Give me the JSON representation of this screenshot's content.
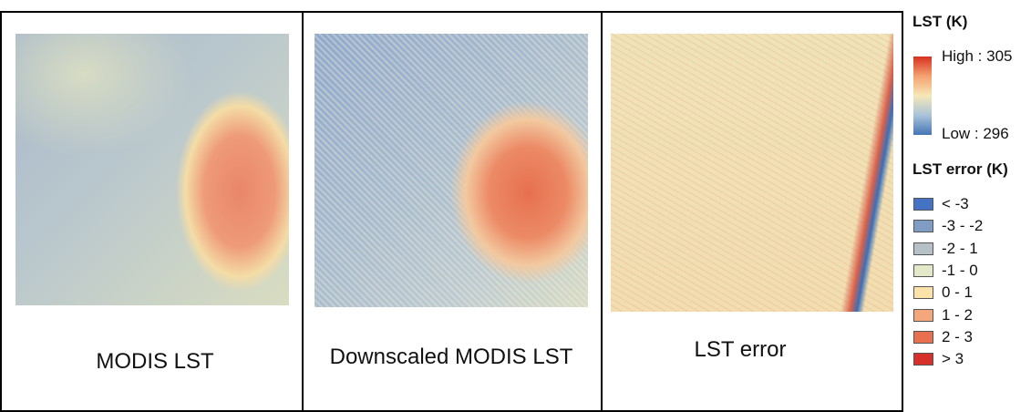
{
  "panels": [
    {
      "caption": "MODIS LST"
    },
    {
      "caption": "Downscaled MODIS LST"
    },
    {
      "caption": "LST error"
    }
  ],
  "legend": {
    "lst_title": "LST (K)",
    "high": "High : 305",
    "low": "Low : 296",
    "error_title": "LST error (K)",
    "classes": [
      {
        "label": "< -3",
        "color": "#4472c4"
      },
      {
        "label": "-3 - -2",
        "color": "#7f9cc4"
      },
      {
        "label": "-2 - 1",
        "color": "#b5c1c6"
      },
      {
        "label": "-1 - 0",
        "color": "#e3e8c8"
      },
      {
        "label": "0 - 1",
        "color": "#fbe2a8"
      },
      {
        "label": "1 - 2",
        "color": "#f3a77a"
      },
      {
        "label": "2 - 3",
        "color": "#e8704e"
      },
      {
        "label": "> 3",
        "color": "#d7302a"
      }
    ]
  }
}
